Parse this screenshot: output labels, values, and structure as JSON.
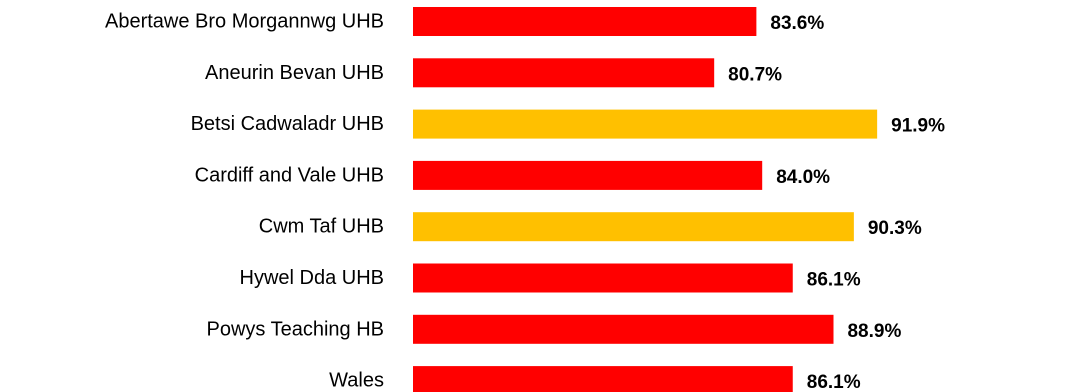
{
  "chart_data": {
    "type": "bar",
    "orientation": "horizontal",
    "categories": [
      "Abertawe Bro Morgannwg UHB",
      "Aneurin Bevan UHB",
      "Betsi Cadwaladr UHB",
      "Cardiff and Vale UHB",
      "Cwm Taf UHB",
      "Hywel Dda UHB",
      "Powys Teaching HB",
      "Wales"
    ],
    "values": [
      83.6,
      80.7,
      91.9,
      84.0,
      90.3,
      86.1,
      88.9,
      86.1
    ],
    "value_labels": [
      "83.6%",
      "80.7%",
      "91.9%",
      "84.0%",
      "90.3%",
      "86.1%",
      "88.9%",
      "86.1%"
    ],
    "bar_colors": [
      "#ff0000",
      "#ff0000",
      "#ffc000",
      "#ff0000",
      "#ffc000",
      "#ff0000",
      "#ff0000",
      "#ff0000"
    ],
    "xlim": [
      60,
      100
    ],
    "grid": false,
    "legend": "none",
    "title": "",
    "xlabel": "",
    "ylabel": ""
  }
}
